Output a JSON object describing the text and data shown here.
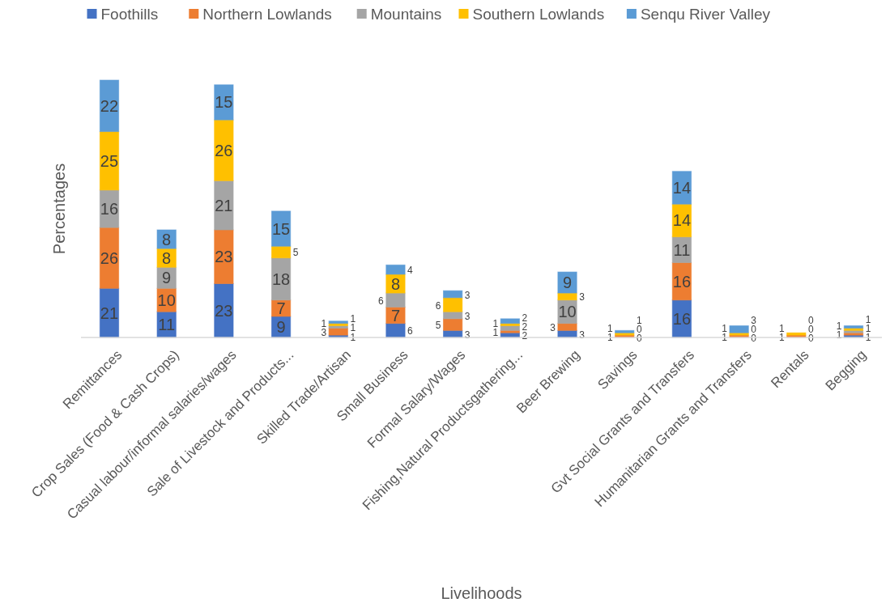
{
  "chart_data": {
    "type": "bar",
    "stacked": true,
    "xlabel": "Livelihoods",
    "ylabel": "Percentages",
    "legend": "top",
    "data_labels": true,
    "categories": [
      "Remittances",
      "Crop Sales (Food & Cash Crops)",
      "Casual labour/informal salaries/wages",
      "Sale of Livestock  and Products...",
      "Skilled Trade/Artisan",
      "Small Business",
      "Formal Salary/Wages",
      "Fishing,Natural Productsgathering...",
      "Beer Brewing",
      "Savings",
      "Gvt Social Grants and Transfers",
      "Humanitarian Grants and Transfers",
      "Rentals",
      "Begging"
    ],
    "series": [
      {
        "name": "Foothills",
        "color": "#4472c4",
        "values": [
          21,
          11,
          23,
          9,
          1,
          6,
          3,
          2,
          3,
          0,
          16,
          0,
          0,
          1
        ]
      },
      {
        "name": "Northern Lowlands",
        "color": "#ed7d31",
        "values": [
          26,
          10,
          23,
          7,
          3,
          7,
          5,
          1,
          3,
          1,
          16,
          1,
          1,
          1
        ]
      },
      {
        "name": "Mountains",
        "color": "#a5a5a5",
        "values": [
          16,
          9,
          21,
          18,
          1,
          6,
          3,
          2,
          10,
          0,
          11,
          0,
          0,
          1
        ]
      },
      {
        "name": "Southern Lowlands",
        "color": "#ffc000",
        "values": [
          25,
          8,
          26,
          5,
          1,
          8,
          6,
          1,
          3,
          1,
          14,
          1,
          1,
          1
        ]
      },
      {
        "name": "Senqu River Valley",
        "color": "#5b9bd5",
        "values": [
          22,
          8,
          15,
          15,
          1,
          4,
          3,
          2,
          9,
          1,
          14,
          3,
          0,
          1
        ]
      }
    ]
  }
}
